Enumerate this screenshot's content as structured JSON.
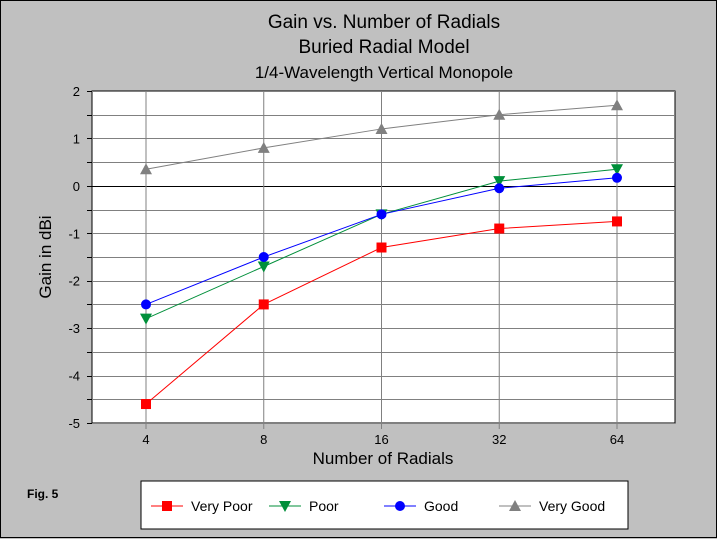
{
  "chart_data": {
    "type": "line",
    "title": [
      "Gain vs. Number of Radials",
      "Buried Radial Model",
      "1/4-Wavelength Vertical Monopole"
    ],
    "xlabel": "Number of Radials",
    "ylabel": "Gain in dBi",
    "categories": [
      "4",
      "8",
      "16",
      "32",
      "64"
    ],
    "ylim": [
      -5,
      2
    ],
    "yticks": [
      "2",
      "1",
      "0",
      "-1",
      "-2",
      "-3",
      "-4",
      "-5"
    ],
    "grid": true,
    "legend_position": "bottom",
    "series": [
      {
        "name": "Very Poor",
        "color": "#ff0000",
        "marker": "square",
        "values": [
          -4.6,
          -2.5,
          -1.3,
          -0.9,
          -0.75
        ]
      },
      {
        "name": "Poor",
        "color": "#008f3a",
        "marker": "triangle-down",
        "values": [
          -2.8,
          -1.7,
          -0.6,
          0.1,
          0.35
        ]
      },
      {
        "name": "Good",
        "color": "#0000ff",
        "marker": "circle",
        "values": [
          -2.5,
          -1.5,
          -0.6,
          -0.05,
          0.17
        ]
      },
      {
        "name": "Very Good",
        "color": "#808080",
        "marker": "triangle-up",
        "values": [
          0.35,
          0.8,
          1.2,
          1.5,
          1.7
        ]
      }
    ]
  },
  "figure_label": "Fig. 5"
}
